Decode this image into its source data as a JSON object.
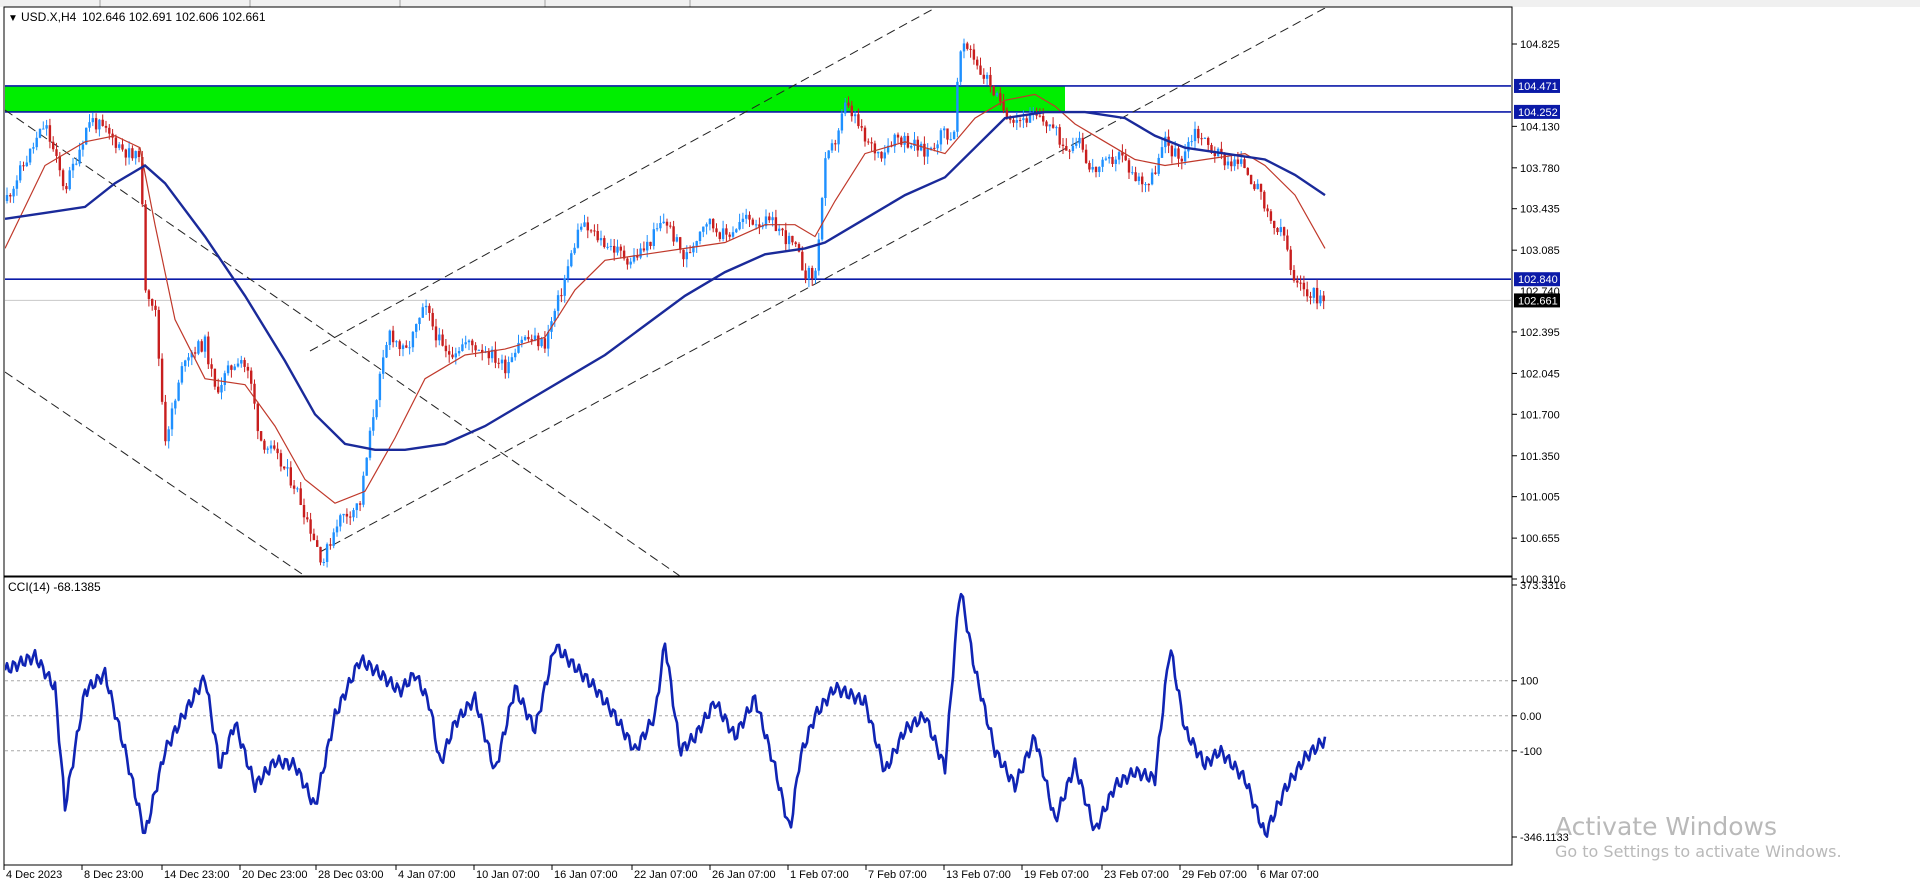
{
  "header": {
    "symbol_label": "USD.X,H4",
    "ohlc": "102.646 102.691 102.606 102.661"
  },
  "indicator": {
    "label": "CCI(14) -68.1385"
  },
  "watermark": {
    "title": "Activate Windows",
    "subtitle": "Go to Settings to activate Windows."
  },
  "colors": {
    "bull": "#1e90ff",
    "bear": "#c81e1e",
    "ma_fast": "#c0392b",
    "ma_slow": "#1a2a9a",
    "zone": "#00ee00",
    "level_line": "#0b1aa8",
    "cci": "#1024b4",
    "price_badge": "#000000"
  },
  "chart_data": [
    {
      "type": "candlestick",
      "timeframe": "H4",
      "ylim": [
        100.1,
        105.1
      ],
      "y_ticks": [
        "104.825",
        "104.130",
        "103.780",
        "103.435",
        "103.085",
        "102.395",
        "102.045",
        "101.700",
        "101.350",
        "101.005",
        "100.655",
        "100.310"
      ],
      "x_ticks": [
        "4 Dec 2023",
        "8 Dec 23:00",
        "14 Dec 23:00",
        "20 Dec 23:00",
        "28 Dec 03:00",
        "4 Jan 07:00",
        "10 Jan 07:00",
        "16 Jan 07:00",
        "22 Jan 07:00",
        "26 Jan 07:00",
        "1 Feb 07:00",
        "7 Feb 07:00",
        "13 Feb 07:00",
        "19 Feb 07:00",
        "23 Feb 07:00",
        "29 Feb 07:00",
        "6 Mar 07:00"
      ],
      "price_path": [
        [
          0,
          103.5
        ],
        [
          40,
          104.15
        ],
        [
          60,
          103.6
        ],
        [
          85,
          104.2
        ],
        [
          130,
          103.85
        ],
        [
          135,
          103.95
        ],
        [
          140,
          102.8
        ],
        [
          150,
          102.6
        ],
        [
          160,
          101.5
        ],
        [
          170,
          101.8
        ],
        [
          180,
          102.2
        ],
        [
          200,
          102.3
        ],
        [
          210,
          101.9
        ],
        [
          235,
          102.2
        ],
        [
          245,
          102.0
        ],
        [
          255,
          101.5
        ],
        [
          270,
          101.35
        ],
        [
          290,
          101.1
        ],
        [
          305,
          100.75
        ],
        [
          318,
          100.45
        ],
        [
          332,
          100.8
        ],
        [
          355,
          100.95
        ],
        [
          370,
          101.8
        ],
        [
          385,
          102.4
        ],
        [
          400,
          102.2
        ],
        [
          420,
          102.6
        ],
        [
          440,
          102.2
        ],
        [
          460,
          102.3
        ],
        [
          480,
          102.25
        ],
        [
          500,
          102.1
        ],
        [
          515,
          102.35
        ],
        [
          540,
          102.3
        ],
        [
          555,
          102.7
        ],
        [
          575,
          103.3
        ],
        [
          600,
          103.15
        ],
        [
          625,
          103.0
        ],
        [
          640,
          103.1
        ],
        [
          660,
          103.35
        ],
        [
          680,
          103.0
        ],
        [
          700,
          103.35
        ],
        [
          720,
          103.2
        ],
        [
          740,
          103.35
        ],
        [
          770,
          103.3
        ],
        [
          790,
          103.1
        ],
        [
          800,
          102.9
        ],
        [
          810,
          102.85
        ],
        [
          820,
          103.8
        ],
        [
          830,
          104.0
        ],
        [
          840,
          104.3
        ],
        [
          850,
          104.2
        ],
        [
          860,
          104.0
        ],
        [
          875,
          103.9
        ],
        [
          890,
          104.05
        ],
        [
          905,
          104.0
        ],
        [
          920,
          103.9
        ],
        [
          940,
          104.1
        ],
        [
          948,
          104.0
        ],
        [
          955,
          104.75
        ],
        [
          965,
          104.8
        ],
        [
          975,
          104.6
        ],
        [
          985,
          104.5
        ],
        [
          995,
          104.3
        ],
        [
          1010,
          104.2
        ],
        [
          1030,
          104.2
        ],
        [
          1045,
          104.15
        ],
        [
          1060,
          103.95
        ],
        [
          1075,
          104.05
        ],
        [
          1085,
          103.75
        ],
        [
          1100,
          103.8
        ],
        [
          1115,
          103.9
        ],
        [
          1130,
          103.7
        ],
        [
          1145,
          103.65
        ],
        [
          1160,
          104.0
        ],
        [
          1175,
          103.85
        ],
        [
          1190,
          104.1
        ],
        [
          1205,
          103.95
        ],
        [
          1220,
          103.85
        ],
        [
          1240,
          103.8
        ],
        [
          1255,
          103.55
        ],
        [
          1265,
          103.3
        ],
        [
          1280,
          103.2
        ],
        [
          1288,
          102.8
        ],
        [
          1300,
          102.75
        ],
        [
          1320,
          102.661
        ]
      ],
      "last_price": 102.661,
      "level_labels": [
        "104.471",
        "104.252",
        "102.840",
        "102.740",
        "102.661"
      ],
      "levels": {
        "zone_top": 104.471,
        "zone_bottom": 104.252,
        "support": 102.84,
        "secondary": 102.74,
        "current": 102.661
      },
      "series": [
        {
          "key": "ma_fast",
          "points": [
            [
              0,
              103.1
            ],
            [
              40,
              103.8
            ],
            [
              80,
              104.0
            ],
            [
              110,
              104.05
            ],
            [
              135,
              103.95
            ],
            [
              150,
              103.3
            ],
            [
              170,
              102.5
            ],
            [
              200,
              102.0
            ],
            [
              240,
              101.95
            ],
            [
              270,
              101.6
            ],
            [
              300,
              101.15
            ],
            [
              330,
              100.95
            ],
            [
              360,
              101.05
            ],
            [
              390,
              101.5
            ],
            [
              420,
              102.0
            ],
            [
              460,
              102.2
            ],
            [
              500,
              102.25
            ],
            [
              540,
              102.35
            ],
            [
              570,
              102.75
            ],
            [
              600,
              103.0
            ],
            [
              640,
              103.05
            ],
            [
              680,
              103.1
            ],
            [
              720,
              103.15
            ],
            [
              760,
              103.3
            ],
            [
              790,
              103.3
            ],
            [
              810,
              103.2
            ],
            [
              830,
              103.5
            ],
            [
              860,
              103.9
            ],
            [
              900,
              104.0
            ],
            [
              940,
              103.9
            ],
            [
              970,
              104.2
            ],
            [
              1000,
              104.35
            ],
            [
              1030,
              104.4
            ],
            [
              1050,
              104.3
            ],
            [
              1070,
              104.15
            ],
            [
              1100,
              104.0
            ],
            [
              1130,
              103.85
            ],
            [
              1160,
              103.8
            ],
            [
              1200,
              103.85
            ],
            [
              1240,
              103.9
            ],
            [
              1260,
              103.8
            ],
            [
              1290,
              103.55
            ],
            [
              1320,
              103.1
            ]
          ]
        },
        {
          "key": "ma_slow",
          "points": [
            [
              0,
              103.35
            ],
            [
              40,
              103.4
            ],
            [
              80,
              103.45
            ],
            [
              110,
              103.65
            ],
            [
              140,
              103.8
            ],
            [
              160,
              103.65
            ],
            [
              200,
              103.2
            ],
            [
              240,
              102.7
            ],
            [
              280,
              102.15
            ],
            [
              310,
              101.7
            ],
            [
              340,
              101.45
            ],
            [
              370,
              101.4
            ],
            [
              400,
              101.4
            ],
            [
              440,
              101.45
            ],
            [
              480,
              101.6
            ],
            [
              520,
              101.8
            ],
            [
              560,
              102.0
            ],
            [
              600,
              102.2
            ],
            [
              640,
              102.45
            ],
            [
              680,
              102.7
            ],
            [
              720,
              102.9
            ],
            [
              760,
              103.05
            ],
            [
              800,
              103.1
            ],
            [
              820,
              103.15
            ],
            [
              860,
              103.35
            ],
            [
              900,
              103.55
            ],
            [
              940,
              103.7
            ],
            [
              970,
              103.95
            ],
            [
              1000,
              104.2
            ],
            [
              1040,
              104.25
            ],
            [
              1080,
              104.25
            ],
            [
              1120,
              104.2
            ],
            [
              1150,
              104.05
            ],
            [
              1180,
              103.95
            ],
            [
              1220,
              103.9
            ],
            [
              1260,
              103.85
            ],
            [
              1290,
              103.72
            ],
            [
              1320,
              103.55
            ]
          ]
        }
      ]
    },
    {
      "type": "line",
      "name": "CCI(14)",
      "ylim": [
        -400,
        400
      ],
      "y_ticks": [
        "373.3316",
        "100",
        "0.00",
        "-100",
        "-346.1133"
      ],
      "reference_lines": [
        100,
        0,
        -100
      ],
      "last_value": -68.1385,
      "series": [
        {
          "key": "cci",
          "points": [
            [
              0,
              130
            ],
            [
              30,
              170
            ],
            [
              50,
              80
            ],
            [
              60,
              -260
            ],
            [
              80,
              70
            ],
            [
              100,
              120
            ],
            [
              120,
              -100
            ],
            [
              140,
              -340
            ],
            [
              150,
              -220
            ],
            [
              160,
              -100
            ],
            [
              180,
              10
            ],
            [
              200,
              110
            ],
            [
              215,
              -150
            ],
            [
              230,
              -20
            ],
            [
              250,
              -200
            ],
            [
              270,
              -130
            ],
            [
              290,
              -140
            ],
            [
              310,
              -260
            ],
            [
              330,
              0
            ],
            [
              355,
              160
            ],
            [
              375,
              120
            ],
            [
              395,
              70
            ],
            [
              410,
              120
            ],
            [
              425,
              30
            ],
            [
              435,
              -140
            ],
            [
              450,
              -20
            ],
            [
              470,
              50
            ],
            [
              490,
              -160
            ],
            [
              510,
              80
            ],
            [
              530,
              -40
            ],
            [
              550,
              200
            ],
            [
              570,
              140
            ],
            [
              590,
              80
            ],
            [
              610,
              0
            ],
            [
              630,
              -100
            ],
            [
              650,
              0
            ],
            [
              660,
              210
            ],
            [
              675,
              -100
            ],
            [
              690,
              -60
            ],
            [
              710,
              40
            ],
            [
              730,
              -60
            ],
            [
              750,
              50
            ],
            [
              770,
              -150
            ],
            [
              785,
              -330
            ],
            [
              795,
              -120
            ],
            [
              810,
              0
            ],
            [
              830,
              80
            ],
            [
              860,
              40
            ],
            [
              880,
              -160
            ],
            [
              900,
              -40
            ],
            [
              920,
              0
            ],
            [
              940,
              -150
            ],
            [
              955,
              370
            ],
            [
              970,
              130
            ],
            [
              990,
              -100
            ],
            [
              1010,
              -200
            ],
            [
              1030,
              -60
            ],
            [
              1050,
              -300
            ],
            [
              1070,
              -140
            ],
            [
              1090,
              -330
            ],
            [
              1110,
              -200
            ],
            [
              1130,
              -160
            ],
            [
              1150,
              -180
            ],
            [
              1165,
              200
            ],
            [
              1180,
              -40
            ],
            [
              1200,
              -140
            ],
            [
              1215,
              -100
            ],
            [
              1240,
              -180
            ],
            [
              1260,
              -340
            ],
            [
              1280,
              -210
            ],
            [
              1300,
              -120
            ],
            [
              1320,
              -68.1385
            ]
          ]
        }
      ]
    }
  ]
}
